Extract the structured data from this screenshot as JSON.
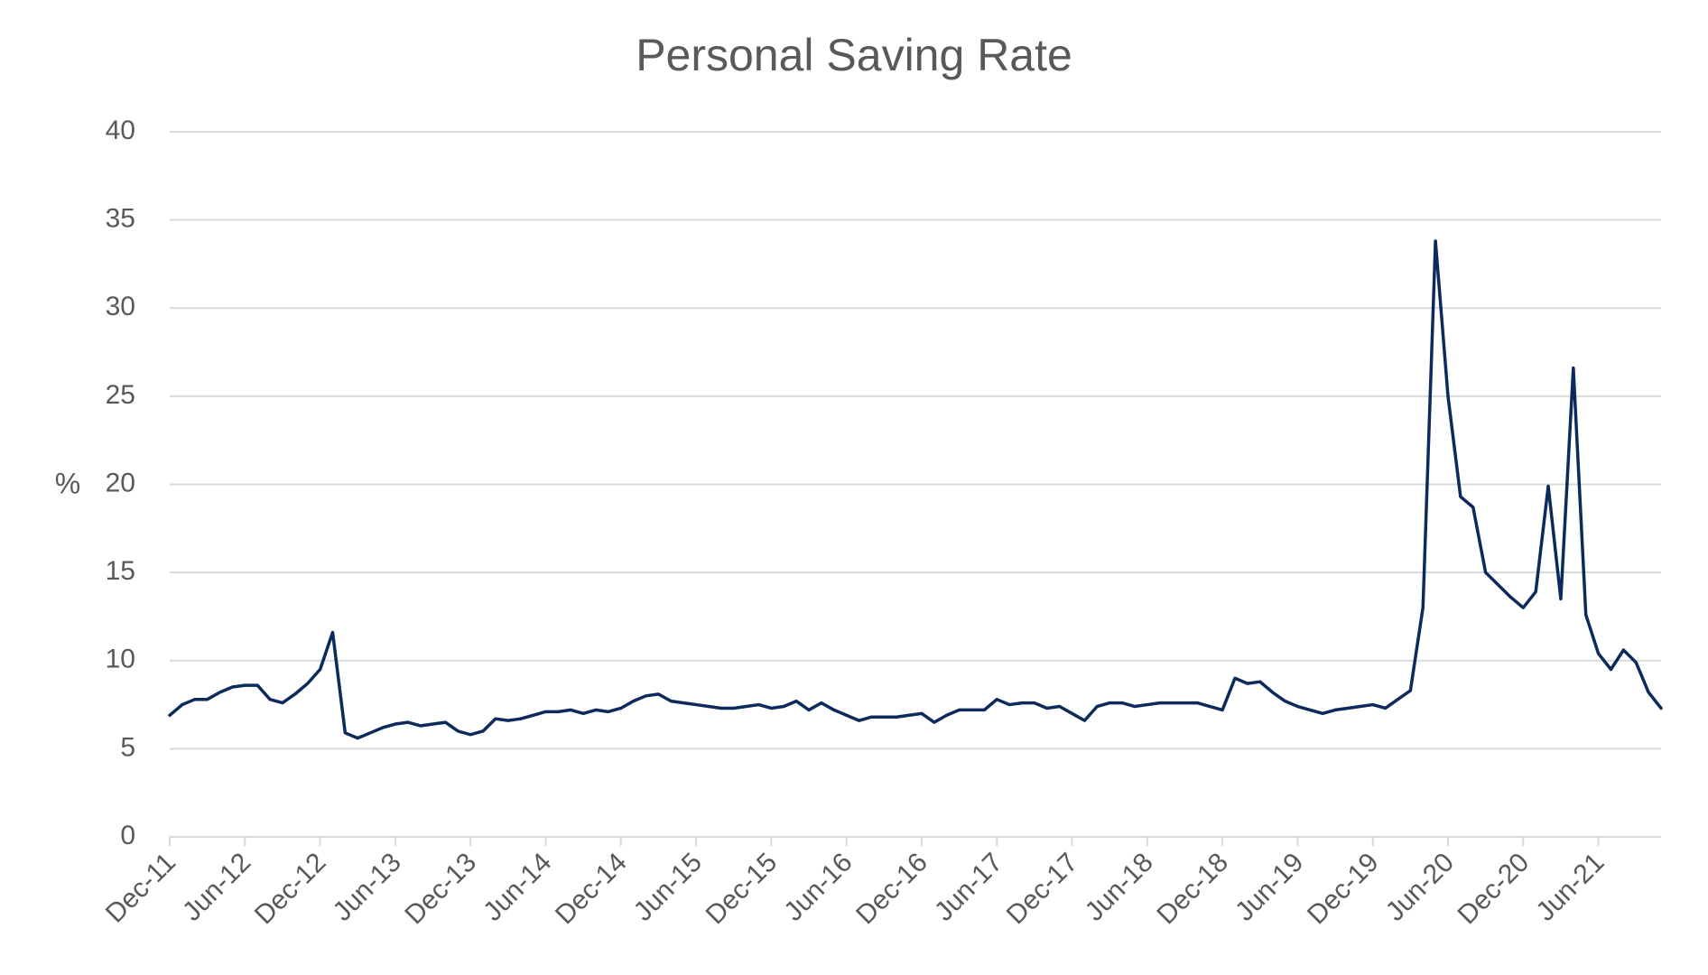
{
  "chart_data": {
    "type": "line",
    "title": "Personal Saving Rate",
    "xlabel": "",
    "ylabel": "%",
    "ylim": [
      0,
      40
    ],
    "yticks": [
      "0",
      "5",
      "10",
      "15",
      "20",
      "25",
      "30",
      "35",
      "40"
    ],
    "xtick_labels": [
      "Dec-11",
      "Jun-12",
      "Dec-12",
      "Jun-13",
      "Dec-13",
      "Jun-14",
      "Dec-14",
      "Jun-15",
      "Dec-15",
      "Jun-16",
      "Dec-16",
      "Jun-17",
      "Dec-17",
      "Jun-18",
      "Dec-18",
      "Jun-19",
      "Dec-19",
      "Jun-20",
      "Dec-20",
      "Jun-21"
    ],
    "grid": true,
    "legend": "none",
    "line_color": "#0c2a5b",
    "series": [
      {
        "values": [
          6.9,
          7.5,
          7.8,
          7.8,
          8.2,
          8.5,
          8.6,
          8.6,
          7.8,
          7.6,
          8.1,
          8.7,
          9.5,
          11.6,
          5.9,
          5.6,
          5.9,
          6.2,
          6.4,
          6.5,
          6.3,
          6.4,
          6.5,
          6.0,
          5.8,
          6.0,
          6.7,
          6.6,
          6.7,
          6.9,
          7.1,
          7.1,
          7.2,
          7.0,
          7.2,
          7.1,
          7.3,
          7.7,
          8.0,
          8.1,
          7.7,
          7.6,
          7.5,
          7.4,
          7.3,
          7.3,
          7.4,
          7.5,
          7.3,
          7.4,
          7.7,
          7.2,
          7.6,
          7.2,
          6.9,
          6.6,
          6.8,
          6.8,
          6.8,
          6.9,
          7.0,
          6.5,
          6.9,
          7.2,
          7.2,
          7.2,
          7.8,
          7.5,
          7.6,
          7.6,
          7.3,
          7.4,
          7.0,
          6.6,
          7.4,
          7.6,
          7.6,
          7.4,
          7.5,
          7.6,
          7.6,
          7.6,
          7.6,
          7.4,
          7.2,
          9.0,
          8.7,
          8.8,
          8.2,
          7.7,
          7.4,
          7.2,
          7.0,
          7.2,
          7.3,
          7.4,
          7.5,
          7.3,
          7.8,
          8.3,
          13.0,
          33.8,
          25.0,
          19.3,
          18.7,
          15.0,
          14.3,
          13.6,
          13.0,
          13.9,
          19.9,
          13.5,
          26.6,
          12.6,
          10.4,
          9.5,
          10.6,
          9.9,
          8.2,
          7.3
        ]
      }
    ]
  }
}
